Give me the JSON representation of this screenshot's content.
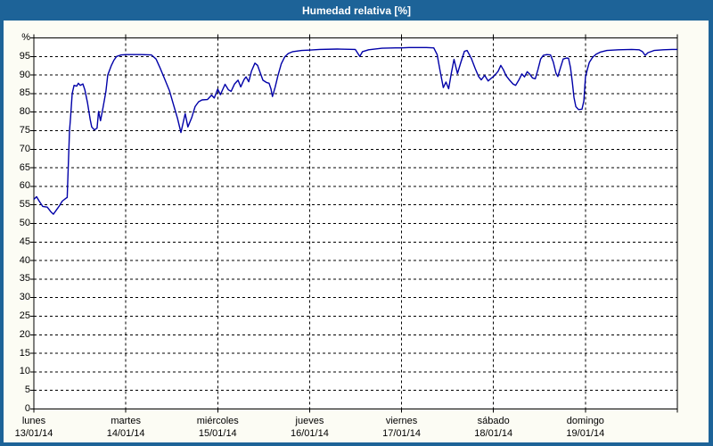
{
  "window": {
    "title": "Humedad relativa [%]"
  },
  "colors": {
    "frame": "#1d6398",
    "title_text": "#ffffff",
    "content_bg": "#fcfcf4",
    "plot_bg": "#ffffff",
    "grid": "#000000",
    "axis": "#000000",
    "line": "#0000a8",
    "label_text": "#000000"
  },
  "chart_data": {
    "type": "line",
    "title": "Humedad relativa [%]",
    "xlabel": "",
    "ylabel": "%",
    "unit_label": "%",
    "ylim": [
      0,
      100
    ],
    "ytick_step": 5,
    "yticks": [
      0,
      5,
      10,
      15,
      20,
      25,
      30,
      35,
      40,
      45,
      50,
      55,
      60,
      65,
      70,
      75,
      80,
      85,
      90,
      95
    ],
    "grid": "dashed",
    "legend_position": "none",
    "x_days": [
      {
        "name": "lunes",
        "date": "13/01/14"
      },
      {
        "name": "martes",
        "date": "14/01/14"
      },
      {
        "name": "miércoles",
        "date": "15/01/14"
      },
      {
        "name": "jueves",
        "date": "16/01/14"
      },
      {
        "name": "viernes",
        "date": "17/01/14"
      },
      {
        "name": "sábado",
        "date": "18/01/14"
      },
      {
        "name": "domingo",
        "date": "19/01/14"
      }
    ],
    "x_unit": "hours_since_monday_00h",
    "x_range_hours": [
      0,
      168
    ],
    "series": [
      {
        "name": "Humedad relativa",
        "color": "#0000a8",
        "points": [
          [
            0,
            56.5
          ],
          [
            0.7,
            57.2
          ],
          [
            1.4,
            56.0
          ],
          [
            2.3,
            54.6
          ],
          [
            3.5,
            54.4
          ],
          [
            4.4,
            53.2
          ],
          [
            5.1,
            52.5
          ],
          [
            6.0,
            53.8
          ],
          [
            6.7,
            54.8
          ],
          [
            7.4,
            56.0
          ],
          [
            8.4,
            56.8
          ],
          [
            8.7,
            57.0
          ],
          [
            9.0,
            66.0
          ],
          [
            9.3,
            75.0
          ],
          [
            9.6,
            79.0
          ],
          [
            10.0,
            85.0
          ],
          [
            10.5,
            87.2
          ],
          [
            11.2,
            87.0
          ],
          [
            11.6,
            87.8
          ],
          [
            12.1,
            87.2
          ],
          [
            12.8,
            87.6
          ],
          [
            13.3,
            86.0
          ],
          [
            14.0,
            82.5
          ],
          [
            14.7,
            78.0
          ],
          [
            15.1,
            76.0
          ],
          [
            15.8,
            75.2
          ],
          [
            16.5,
            75.7
          ],
          [
            16.9,
            80.2
          ],
          [
            17.4,
            77.7
          ],
          [
            18.1,
            81.5
          ],
          [
            18.8,
            85.5
          ],
          [
            19.3,
            90.0
          ],
          [
            20.2,
            92.5
          ],
          [
            20.9,
            94.0
          ],
          [
            21.6,
            95.0
          ],
          [
            22.8,
            95.4
          ],
          [
            24.2,
            95.5
          ],
          [
            28.0,
            95.5
          ],
          [
            30.7,
            95.4
          ],
          [
            31.9,
            94.3
          ],
          [
            33.0,
            91.8
          ],
          [
            34.2,
            88.8
          ],
          [
            35.4,
            85.8
          ],
          [
            36.5,
            81.8
          ],
          [
            37.5,
            78.3
          ],
          [
            38.4,
            74.5
          ],
          [
            39.5,
            79.6
          ],
          [
            40.2,
            76.0
          ],
          [
            41.2,
            78.5
          ],
          [
            42.1,
            81.5
          ],
          [
            43.0,
            82.8
          ],
          [
            43.9,
            83.3
          ],
          [
            45.3,
            83.4
          ],
          [
            46.4,
            84.6
          ],
          [
            47.1,
            83.8
          ],
          [
            48.0,
            86.2
          ],
          [
            48.7,
            84.7
          ],
          [
            49.9,
            87.5
          ],
          [
            50.8,
            86.0
          ],
          [
            51.5,
            85.6
          ],
          [
            52.4,
            87.6
          ],
          [
            53.3,
            88.6
          ],
          [
            54.0,
            86.8
          ],
          [
            54.9,
            88.8
          ],
          [
            55.4,
            89.5
          ],
          [
            56.1,
            88.2
          ],
          [
            56.8,
            91.0
          ],
          [
            57.7,
            93.2
          ],
          [
            58.4,
            92.6
          ],
          [
            59.1,
            90.6
          ],
          [
            59.8,
            88.6
          ],
          [
            60.7,
            88.0
          ],
          [
            61.4,
            87.8
          ],
          [
            61.9,
            86.3
          ],
          [
            62.3,
            84.2
          ],
          [
            63.0,
            86.8
          ],
          [
            63.7,
            89.8
          ],
          [
            64.6,
            93.0
          ],
          [
            65.5,
            94.9
          ],
          [
            66.4,
            95.8
          ],
          [
            67.6,
            96.3
          ],
          [
            69.9,
            96.6
          ],
          [
            71.8,
            96.7
          ],
          [
            74.6,
            96.9
          ],
          [
            79.2,
            97.0
          ],
          [
            83.9,
            96.9
          ],
          [
            84.6,
            95.8
          ],
          [
            85.1,
            95.0
          ],
          [
            85.8,
            96.3
          ],
          [
            87.4,
            96.8
          ],
          [
            90.9,
            97.2
          ],
          [
            94.4,
            97.3
          ],
          [
            96.0,
            97.3
          ],
          [
            97.9,
            97.4
          ],
          [
            100.2,
            97.4
          ],
          [
            102.5,
            97.4
          ],
          [
            104.4,
            97.3
          ],
          [
            105.3,
            95.5
          ],
          [
            106.0,
            91.5
          ],
          [
            106.9,
            86.6
          ],
          [
            107.6,
            88.1
          ],
          [
            108.3,
            86.3
          ],
          [
            109.0,
            90.5
          ],
          [
            109.7,
            94.2
          ],
          [
            110.6,
            90.4
          ],
          [
            111.5,
            93.5
          ],
          [
            112.4,
            96.4
          ],
          [
            113.1,
            96.6
          ],
          [
            114.2,
            94.5
          ],
          [
            115.2,
            91.8
          ],
          [
            116.1,
            89.6
          ],
          [
            116.8,
            88.7
          ],
          [
            117.7,
            89.9
          ],
          [
            118.6,
            88.4
          ],
          [
            119.5,
            89.2
          ],
          [
            120.2,
            89.8
          ],
          [
            121.2,
            91.0
          ],
          [
            121.9,
            92.6
          ],
          [
            122.6,
            91.4
          ],
          [
            123.3,
            89.8
          ],
          [
            124.2,
            88.6
          ],
          [
            125.1,
            87.6
          ],
          [
            125.8,
            87.2
          ],
          [
            126.7,
            88.8
          ],
          [
            127.4,
            90.3
          ],
          [
            128.1,
            89.5
          ],
          [
            128.8,
            90.9
          ],
          [
            129.5,
            90.2
          ],
          [
            130.2,
            89.2
          ],
          [
            130.9,
            89.0
          ],
          [
            131.6,
            91.5
          ],
          [
            132.3,
            94.3
          ],
          [
            133.0,
            95.3
          ],
          [
            133.9,
            95.5
          ],
          [
            134.9,
            95.4
          ],
          [
            135.6,
            93.5
          ],
          [
            136.3,
            90.5
          ],
          [
            136.8,
            89.6
          ],
          [
            137.5,
            92.0
          ],
          [
            138.2,
            94.3
          ],
          [
            139.1,
            94.6
          ],
          [
            139.6,
            94.5
          ],
          [
            140.1,
            92.0
          ],
          [
            140.6,
            88.0
          ],
          [
            141.0,
            84.0
          ],
          [
            141.5,
            81.5
          ],
          [
            142.2,
            80.7
          ],
          [
            143.1,
            80.8
          ],
          [
            143.6,
            83.0
          ],
          [
            144.0,
            89.5
          ],
          [
            144.5,
            91.5
          ],
          [
            145.0,
            93.4
          ],
          [
            145.9,
            94.8
          ],
          [
            146.8,
            95.6
          ],
          [
            148.0,
            96.2
          ],
          [
            149.6,
            96.6
          ],
          [
            152.6,
            96.8
          ],
          [
            156.1,
            96.9
          ],
          [
            158.0,
            96.8
          ],
          [
            158.9,
            96.3
          ],
          [
            159.6,
            95.3
          ],
          [
            160.3,
            96.0
          ],
          [
            161.9,
            96.6
          ],
          [
            164.3,
            96.8
          ],
          [
            166.6,
            96.9
          ],
          [
            168.0,
            96.9
          ]
        ]
      }
    ]
  }
}
